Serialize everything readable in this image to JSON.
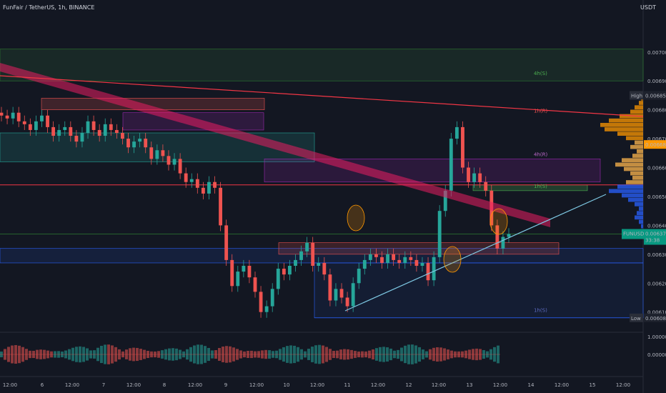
{
  "header": {
    "symbol": "FunFair / TetherUS, 1h, BINANCE",
    "currency": "USDT"
  },
  "colors": {
    "background": "#131722",
    "up": "#26a69a",
    "down": "#ef5350",
    "trendline_up": "#7ec8e3",
    "resistance_line": "#f23645",
    "price_tag": "#089981"
  },
  "chart_data": {
    "type": "candlestick",
    "ylim": [
      0.00603,
      0.00718
    ],
    "y_ticks": [
      "0.00700",
      "0.00690",
      "0.00680",
      "0.00670",
      "0.00660",
      "0.00650",
      "0.00640",
      "0.00630",
      "0.00620",
      "0.00610"
    ],
    "x_ticks": [
      "12:00",
      "6",
      "12:00",
      "7",
      "12:00",
      "8",
      "12:00",
      "9",
      "12:00",
      "10",
      "12:00",
      "11",
      "12:00",
      "12",
      "12:00",
      "13",
      "12:00",
      "14",
      "12:00",
      "15",
      "12:00"
    ],
    "price_levels": {
      "high": "0.00685",
      "high_label": "High",
      "low": "0.00608",
      "low_label": "Low",
      "current": "0.00637",
      "current_symbol": "FUNUSDT",
      "current_countdown": "33:38",
      "prev_level": "0.00668"
    },
    "zone_labels": [
      "4h(S)",
      "1h(R)",
      "4h(R)",
      "1h(S)",
      "1h(S)"
    ],
    "candles_close": [
      0.00678,
      0.00677,
      0.00679,
      0.00676,
      0.00675,
      0.00673,
      0.00676,
      0.00678,
      0.00674,
      0.00671,
      0.00673,
      0.00674,
      0.00671,
      0.00669,
      0.00672,
      0.00676,
      0.00673,
      0.00671,
      0.00675,
      0.00673,
      0.00672,
      0.0067,
      0.00667,
      0.00669,
      0.0067,
      0.00667,
      0.00663,
      0.00666,
      0.00664,
      0.00661,
      0.00663,
      0.00658,
      0.00655,
      0.00656,
      0.00653,
      0.00651,
      0.00655,
      0.00653,
      0.0064,
      0.00628,
      0.00619,
      0.00624,
      0.00626,
      0.00622,
      0.00617,
      0.0061,
      0.00612,
      0.00618,
      0.00625,
      0.00623,
      0.00626,
      0.00628,
      0.00631,
      0.00634,
      0.00626,
      0.00627,
      0.00623,
      0.00614,
      0.00618,
      0.00615,
      0.00612,
      0.0062,
      0.00625,
      0.00628,
      0.0063,
      0.00629,
      0.00627,
      0.0063,
      0.00628,
      0.00627,
      0.00629,
      0.00628,
      0.00626,
      0.00627,
      0.00621,
      0.00629,
      0.00645,
      0.00652,
      0.0067,
      0.00674,
      0.0066,
      0.00655,
      0.00658,
      0.00655,
      0.00652,
      0.0064,
      0.00632,
      0.00636,
      0.00637
    ],
    "volume_profile": [
      0.05,
      0.1,
      0.2,
      0.3,
      0.55,
      0.8,
      1.0,
      0.9,
      0.6,
      0.4,
      0.2,
      0.3,
      0.15,
      0.25,
      0.5,
      0.65,
      0.45,
      0.3,
      0.25,
      0.4,
      0.6,
      0.8,
      0.5,
      0.35,
      0.2,
      0.1,
      0.15,
      0.2,
      0.1,
      0.05
    ],
    "oscillator_ticks": [
      "1.00000",
      "0.00000"
    ]
  }
}
